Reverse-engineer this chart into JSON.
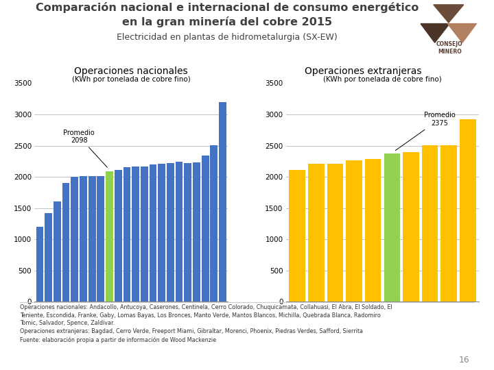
{
  "title_line1": "Comparación nacional e internacional de consumo energético",
  "title_line2": "en la gran minería del cobre 2015",
  "subtitle": "Electricidad en plantas de hidrometalurgia (SX-EW)",
  "left_title": "Operaciones nacionales",
  "left_subtitle": "(KWh por tonelada de cobre fino)",
  "right_title": "Operaciones extranjeras",
  "right_subtitle": "(KWh por tonelada de cobre fino)",
  "nacional_values": [
    1200,
    1420,
    1600,
    1900,
    2000,
    2010,
    2010,
    2010,
    2090,
    2110,
    2150,
    2160,
    2170,
    2200,
    2210,
    2220,
    2240,
    2220,
    2230,
    2340,
    2510,
    3200
  ],
  "nacional_avg_index": 8,
  "nacional_avg": 2098,
  "extranjeras_values": [
    2110,
    2210,
    2210,
    2260,
    2290,
    2370,
    2400,
    2510,
    2510,
    2920
  ],
  "extranjeras_avg_index": 5,
  "extranjeras_avg": 2375,
  "bar_color_nacional": "#4472C4",
  "bar_color_extranjeras": "#FFC000",
  "bar_color_avg": "#92D050",
  "ylim": [
    0,
    3500
  ],
  "yticks": [
    0,
    500,
    1000,
    1500,
    2000,
    2500,
    3000,
    3500
  ],
  "footnote_line1": "Operaciones nacionales: Andacollo, Antucoya, Caserones, Centinela, Cerro Colorado, Chuquicamata, Collahuasi, El Abra, El Soldado, El",
  "footnote_line2": "Teniente, Escondida, Franke, Gaby, Lomas Bayas, Los Bronces, Manto Verde, Mantos Blancos, Michilla, Quebrada Blanca, Radomiro",
  "footnote_line3": "Tomic, Salvador, Spence, Zaldívar.",
  "footnote_line4": "Operaciones extranjeras: Bagdad, Cerro Verde, Freeport Miami, Gibraltar, Morenci, Phoenix, Piedras Verdes, Safford, Sierrita",
  "footnote_line5": "Fuente: elaboración propia a partir de información de Wood Mackenzie",
  "page_number": "16",
  "bg_color": "#FFFFFF",
  "grid_color": "#AAAAAA",
  "title_color": "#404040",
  "footnote_color": "#333333",
  "page_color": "#888888"
}
